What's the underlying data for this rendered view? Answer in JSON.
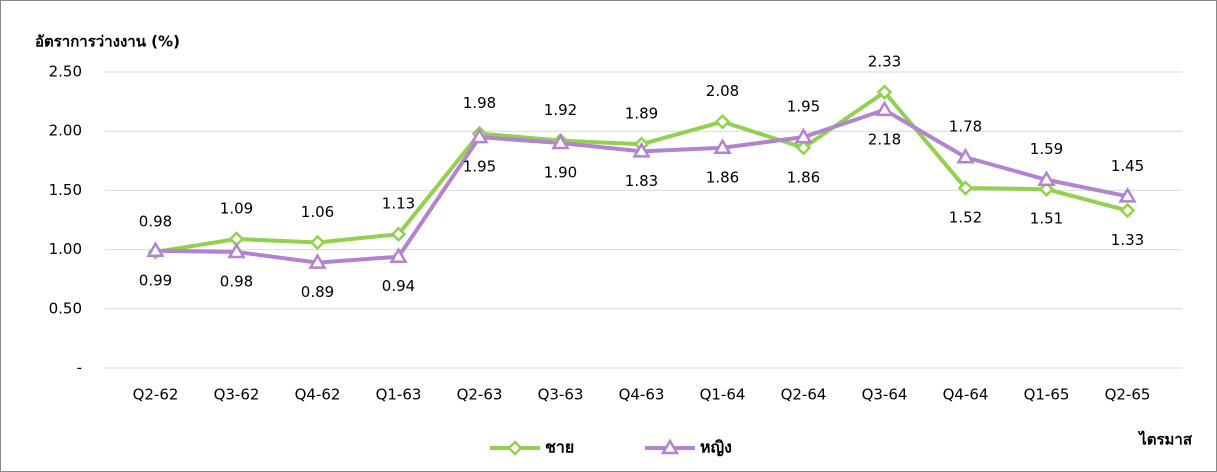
{
  "chart_data": {
    "type": "line",
    "y_axis_title": "อัตราการว่างงาน (%)",
    "x_axis_title": "ไตรมาส",
    "categories": [
      "Q2-62",
      "Q3-62",
      "Q4-62",
      "Q1-63",
      "Q2-63",
      "Q3-63",
      "Q4-63",
      "Q1-64",
      "Q2-64",
      "Q3-64",
      "Q4-64",
      "Q1-65",
      "Q2-65"
    ],
    "series": [
      {
        "name": "ชาย",
        "color": "#92d050",
        "marker": "diamond",
        "values": [
          0.98,
          1.09,
          1.06,
          1.13,
          1.98,
          1.92,
          1.89,
          2.08,
          1.86,
          2.33,
          1.52,
          1.51,
          1.33
        ],
        "value_labels": [
          "0.98",
          "1.09",
          "1.06",
          "1.13",
          "1.98",
          "1.92",
          "1.89",
          "2.08",
          "1.86",
          "2.33",
          "1.52",
          "1.51",
          "1.33"
        ]
      },
      {
        "name": "หญิง",
        "color": "#b383d1",
        "marker": "triangle",
        "values": [
          0.99,
          0.98,
          0.89,
          0.94,
          1.95,
          1.9,
          1.83,
          1.86,
          1.95,
          2.18,
          1.78,
          1.59,
          1.45
        ],
        "value_labels": [
          "0.99",
          "0.98",
          "0.89",
          "0.94",
          "1.95",
          "1.90",
          "1.83",
          "1.86",
          "1.95",
          "2.18",
          "1.78",
          "1.59",
          "1.45"
        ]
      }
    ],
    "ylim": [
      0,
      2.5
    ],
    "yticks": [
      {
        "value": 0,
        "label": "-"
      },
      {
        "value": 0.5,
        "label": "0.50"
      },
      {
        "value": 1,
        "label": "1.00"
      },
      {
        "value": 1.5,
        "label": "1.50"
      },
      {
        "value": 2,
        "label": "2.00"
      },
      {
        "value": 2.5,
        "label": "2.50"
      }
    ],
    "grid": true,
    "legend": "bottom"
  }
}
